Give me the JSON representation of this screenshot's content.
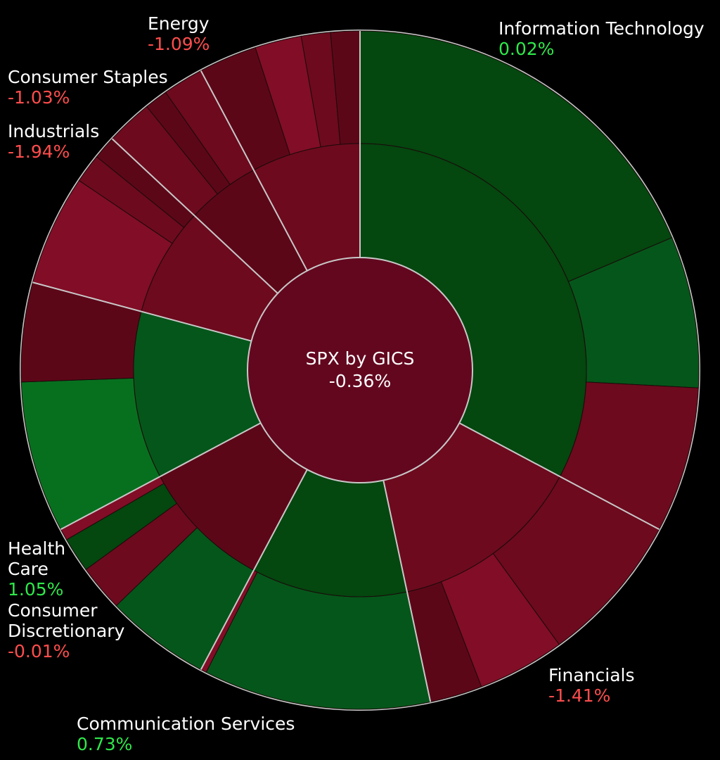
{
  "chart_data": {
    "type": "sunburst",
    "title": "SPX by GICS",
    "value": "-0.36%",
    "colors": {
      "positive_dark": "#04470f",
      "positive": "#05561a",
      "positive_bright": "#07701f",
      "negative_dark": "#5c0718",
      "negative": "#6d0a1e",
      "negative_bright": "#820d26",
      "center": "#63071f",
      "separator": "#c8c8c8"
    },
    "sectors": [
      {
        "name": "Information Technology",
        "change": "0.02%",
        "change_value": 0.02,
        "start": 0,
        "end": 118,
        "tone": "pos_dark",
        "segments": [
          {
            "start": 0,
            "end": 67,
            "tone": "pos_dark"
          },
          {
            "start": 67,
            "end": 93,
            "tone": "pos"
          },
          {
            "start": 93,
            "end": 118,
            "tone": "neg"
          }
        ]
      },
      {
        "name": "Financials",
        "change": "-1.41%",
        "change_value": -1.41,
        "start": 118,
        "end": 168,
        "tone": "neg",
        "segments": [
          {
            "start": 118,
            "end": 144,
            "tone": "neg"
          },
          {
            "start": 144,
            "end": 159,
            "tone": "neg_bright"
          },
          {
            "start": 159,
            "end": 168,
            "tone": "neg_dark"
          }
        ]
      },
      {
        "name": "Communication Services",
        "change": "0.73%",
        "change_value": 0.73,
        "start": 168,
        "end": 208,
        "tone": "pos",
        "segments": [
          {
            "start": 168,
            "end": 207,
            "tone": "pos"
          },
          {
            "start": 207,
            "end": 208,
            "tone": "neg_bright"
          }
        ]
      },
      {
        "name": "Consumer Discretionary",
        "change": "-0.01%",
        "change_value": -0.01,
        "start": 208,
        "end": 242,
        "tone": "neg_dark",
        "segments": [
          {
            "start": 208,
            "end": 226,
            "tone": "pos"
          },
          {
            "start": 226,
            "end": 234,
            "tone": "neg"
          },
          {
            "start": 234,
            "end": 240,
            "tone": "pos_dark"
          },
          {
            "start": 240,
            "end": 242,
            "tone": "neg_bright"
          }
        ]
      },
      {
        "name": "Health Care",
        "change": "1.05%",
        "change_value": 1.05,
        "start": 242,
        "end": 285,
        "tone": "pos",
        "segments": [
          {
            "start": 242,
            "end": 268,
            "tone": "pos_bright"
          },
          {
            "start": 268,
            "end": 285,
            "tone": "neg_dark"
          }
        ]
      },
      {
        "name": "Industrials",
        "change": "-1.94%",
        "change_value": -1.94,
        "start": 285,
        "end": 313,
        "tone": "neg",
        "segments": [
          {
            "start": 285,
            "end": 304,
            "tone": "neg_bright"
          },
          {
            "start": 304,
            "end": 309,
            "tone": "neg"
          },
          {
            "start": 309,
            "end": 313,
            "tone": "neg_dark"
          }
        ]
      },
      {
        "name": "Consumer Staples",
        "change": "-1.03%",
        "change_value": -1.03,
        "start": 313,
        "end": 332,
        "tone": "neg",
        "segments": [
          {
            "start": 313,
            "end": 321,
            "tone": "neg"
          },
          {
            "start": 321,
            "end": 325,
            "tone": "neg_dark"
          },
          {
            "start": 325,
            "end": 332,
            "tone": "neg"
          }
        ]
      },
      {
        "name": "Energy",
        "change": "-1.09%",
        "change_value": -1.09,
        "start": 332,
        "end": 360,
        "tone": "neg_dark",
        "segments": [
          {
            "start": 332,
            "end": 342,
            "tone": "neg_dark"
          },
          {
            "start": 342,
            "end": 350,
            "tone": "neg_bright"
          },
          {
            "start": 350,
            "end": 355,
            "tone": "neg"
          },
          {
            "start": 355,
            "end": 360,
            "tone": "neg_dark"
          }
        ]
      }
    ],
    "inner_ring_tones": {
      "Information Technology": "pos_dark",
      "Financials": "neg",
      "Communication Services": "pos_dark",
      "Consumer Discretionary": "neg_dark",
      "Health Care": "pos",
      "Industrials": "neg",
      "Consumer Staples": "neg_dark",
      "Energy": "neg"
    }
  }
}
